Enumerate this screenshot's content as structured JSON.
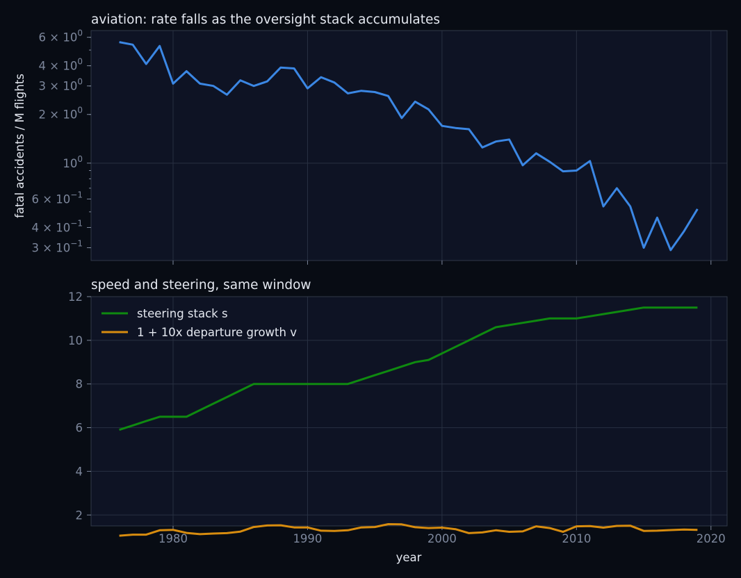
{
  "colors": {
    "background": "#080c14",
    "panel": "#0e1324",
    "rate": "#3b87e4",
    "steering": "#0f8a10",
    "growth": "#d78c0f"
  },
  "chart_data": [
    {
      "type": "line",
      "title": "aviation: rate falls as the oversight stack accumulates",
      "xlabel": "",
      "ylabel": "fatal accidents / M flights",
      "yscale": "log",
      "xlim": [
        1973.9,
        2021.2
      ],
      "ylim": [
        0.25,
        6.6
      ],
      "grid": true,
      "x_ticks": [
        1980,
        1990,
        2000,
        2010,
        2020
      ],
      "y_ticks": [
        {
          "value": 6,
          "base": "6 × 10",
          "exp": "0"
        },
        {
          "value": 4,
          "base": "4 × 10",
          "exp": "0"
        },
        {
          "value": 3,
          "base": "3 × 10",
          "exp": "0"
        },
        {
          "value": 2,
          "base": "2 × 10",
          "exp": "0"
        },
        {
          "value": 1,
          "base": "10",
          "exp": "0"
        },
        {
          "value": 0.6,
          "base": "6 × 10",
          "exp": "−1"
        },
        {
          "value": 0.4,
          "base": "4 × 10",
          "exp": "−1"
        },
        {
          "value": 0.3,
          "base": "3 × 10",
          "exp": "−1"
        }
      ],
      "series": [
        {
          "x": [
            1976,
            1977,
            1978,
            1979,
            1980,
            1981,
            1982,
            1983,
            1984,
            1985,
            1986,
            1987,
            1988,
            1989,
            1990,
            1991,
            1992,
            1993,
            1994,
            1995,
            1996,
            1997,
            1998,
            1999,
            2000,
            2001,
            2002,
            2003,
            2004,
            2005,
            2006,
            2007,
            2008,
            2009,
            2010,
            2011,
            2012,
            2013,
            2014,
            2015,
            2016,
            2017,
            2018,
            2019
          ],
          "values": [
            5.6,
            5.4,
            4.1,
            5.3,
            3.1,
            3.7,
            3.1,
            3.0,
            2.65,
            3.25,
            3.0,
            3.2,
            3.9,
            3.85,
            2.9,
            3.4,
            3.15,
            2.7,
            2.8,
            2.75,
            2.6,
            1.9,
            2.4,
            2.15,
            1.7,
            1.65,
            1.62,
            1.25,
            1.36,
            1.4,
            0.97,
            1.15,
            1.02,
            0.89,
            0.9,
            1.03,
            0.54,
            0.7,
            0.54,
            0.3,
            0.46,
            0.29,
            0.38,
            0.52
          ]
        }
      ]
    },
    {
      "type": "line",
      "title": "speed and steering, same window",
      "xlabel": "year",
      "ylabel": "",
      "xlim": [
        1973.9,
        2021.2
      ],
      "ylim": [
        1.5,
        12.0
      ],
      "grid": true,
      "legend_position": "top-left",
      "x_ticks": [
        1980,
        1990,
        2000,
        2010,
        2020
      ],
      "y_ticks": [
        2,
        4,
        6,
        8,
        10,
        12
      ],
      "series": [
        {
          "name": "steering stack s",
          "x": [
            1976,
            1977,
            1978,
            1979,
            1980,
            1981,
            1982,
            1983,
            1984,
            1985,
            1986,
            1987,
            1988,
            1989,
            1990,
            1991,
            1992,
            1993,
            1994,
            1995,
            1996,
            1997,
            1998,
            1999,
            2000,
            2001,
            2002,
            2003,
            2004,
            2005,
            2006,
            2007,
            2008,
            2009,
            2010,
            2011,
            2012,
            2013,
            2014,
            2015,
            2016,
            2017,
            2018,
            2019
          ],
          "values": [
            5.9,
            6.1,
            6.3,
            6.5,
            6.5,
            6.5,
            6.8,
            7.1,
            7.4,
            7.7,
            8.0,
            8.0,
            8.0,
            8.0,
            8.0,
            8.0,
            8.0,
            8.0,
            8.2,
            8.4,
            8.6,
            8.8,
            9.0,
            9.1,
            9.4,
            9.7,
            10.0,
            10.3,
            10.6,
            10.7,
            10.8,
            10.9,
            11.0,
            11.0,
            11.0,
            11.1,
            11.2,
            11.3,
            11.4,
            11.5,
            11.5,
            11.5,
            11.5,
            11.5
          ]
        },
        {
          "name": "1 + 10x departure growth v",
          "x": [
            1976,
            1977,
            1978,
            1979,
            1980,
            1981,
            1982,
            1983,
            1984,
            1985,
            1986,
            1987,
            1988,
            1989,
            1990,
            1991,
            1992,
            1993,
            1994,
            1995,
            1996,
            1997,
            1998,
            1999,
            2000,
            2001,
            2002,
            2003,
            2004,
            2005,
            2006,
            2007,
            2008,
            2009,
            2010,
            2011,
            2012,
            2013,
            2014,
            2015,
            2016,
            2017,
            2018,
            2019
          ],
          "values": [
            1.05,
            1.1,
            1.1,
            1.3,
            1.32,
            1.18,
            1.12,
            1.15,
            1.17,
            1.24,
            1.45,
            1.52,
            1.53,
            1.43,
            1.43,
            1.28,
            1.27,
            1.3,
            1.43,
            1.45,
            1.58,
            1.57,
            1.44,
            1.4,
            1.42,
            1.35,
            1.17,
            1.2,
            1.3,
            1.23,
            1.25,
            1.48,
            1.4,
            1.23,
            1.48,
            1.49,
            1.42,
            1.5,
            1.51,
            1.27,
            1.28,
            1.31,
            1.33,
            1.32
          ]
        }
      ]
    }
  ]
}
